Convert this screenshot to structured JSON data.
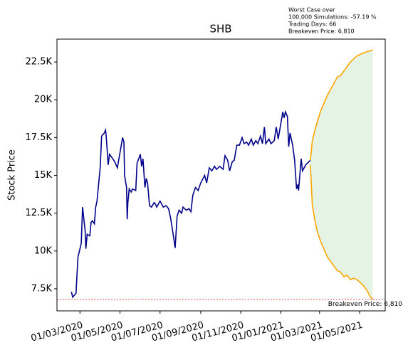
{
  "chart_data": {
    "type": "line",
    "title": "SHB",
    "ylabel": "Stock Price",
    "annotation": [
      "Worst Case over",
      "100,000 Simulations: -57.19 %",
      "Trading Days: 66",
      "Breakeven Price: 6,810"
    ],
    "breakeven": 6810,
    "breakeven_label": "Breakeven Price: 6,810",
    "breakeven_color": "#d62728",
    "band_color": "#2ca02c",
    "xlim": [
      "2020-01-26",
      "2021-06-09"
    ],
    "xticks": [
      {
        "value": "2020-03-01",
        "label": "01/03/2020"
      },
      {
        "value": "2020-05-01",
        "label": "01/05/2020"
      },
      {
        "value": "2020-07-01",
        "label": "01/07/2020"
      },
      {
        "value": "2020-09-01",
        "label": "01/09/2020"
      },
      {
        "value": "2020-11-01",
        "label": "01/11/2020"
      },
      {
        "value": "2021-01-01",
        "label": "01/01/2021"
      },
      {
        "value": "2021-03-01",
        "label": "01/03/2021"
      },
      {
        "value": "2021-05-01",
        "label": "01/05/2021"
      }
    ],
    "ylim": [
      6040,
      24010
    ],
    "yticks": [
      {
        "value": 7500,
        "label": "7.5K"
      },
      {
        "value": 10000,
        "label": "10K"
      },
      {
        "value": 12500,
        "label": "12.5K"
      },
      {
        "value": 15000,
        "label": "15K"
      },
      {
        "value": 17500,
        "label": "17.5K"
      },
      {
        "value": 20000,
        "label": "20K"
      },
      {
        "value": 22500,
        "label": "22.5K"
      }
    ],
    "series": [
      {
        "color": "#00008b",
        "x": [
          "2020-02-17",
          "2020-02-19",
          "2020-02-24",
          "2020-02-27",
          "2020-03-03",
          "2020-03-05",
          "2020-03-09",
          "2020-03-10",
          "2020-03-12",
          "2020-03-16",
          "2020-03-18",
          "2020-03-20",
          "2020-03-23",
          "2020-03-25",
          "2020-03-27",
          "2020-04-01",
          "2020-04-03",
          "2020-04-07",
          "2020-04-09",
          "2020-04-10",
          "2020-04-13",
          "2020-04-15",
          "2020-04-20",
          "2020-04-23",
          "2020-04-27",
          "2020-05-03",
          "2020-05-05",
          "2020-05-07",
          "2020-05-08",
          "2020-05-11",
          "2020-05-12",
          "2020-05-13",
          "2020-05-15",
          "2020-05-18",
          "2020-05-20",
          "2020-05-25",
          "2020-05-27",
          "2020-06-01",
          "2020-06-03",
          "2020-06-05",
          "2020-06-08",
          "2020-06-10",
          "2020-06-12",
          "2020-06-15",
          "2020-06-18",
          "2020-06-22",
          "2020-06-24",
          "2020-06-26",
          "2020-07-01",
          "2020-07-06",
          "2020-07-10",
          "2020-07-14",
          "2020-07-17",
          "2020-07-21",
          "2020-07-24",
          "2020-07-27",
          "2020-07-30",
          "2020-08-03",
          "2020-08-05",
          "2020-08-10",
          "2020-08-14",
          "2020-08-17",
          "2020-08-20",
          "2020-08-24",
          "2020-08-28",
          "2020-09-01",
          "2020-09-07",
          "2020-09-10",
          "2020-09-14",
          "2020-09-18",
          "2020-09-22",
          "2020-09-25",
          "2020-09-30",
          "2020-10-05",
          "2020-10-08",
          "2020-10-12",
          "2020-10-15",
          "2020-10-19",
          "2020-10-22",
          "2020-10-26",
          "2020-10-30",
          "2020-11-03",
          "2020-11-06",
          "2020-11-10",
          "2020-11-13",
          "2020-11-17",
          "2020-11-20",
          "2020-11-24",
          "2020-11-27",
          "2020-12-01",
          "2020-12-04",
          "2020-12-07",
          "2020-12-09",
          "2020-12-14",
          "2020-12-17",
          "2020-12-22",
          "2020-12-25",
          "2020-12-28",
          "2021-01-04",
          "2021-01-06",
          "2021-01-08",
          "2021-01-11",
          "2021-01-13",
          "2021-01-15",
          "2021-01-19",
          "2021-01-22",
          "2021-01-25",
          "2021-01-27",
          "2021-01-28",
          "2021-02-01",
          "2021-02-03",
          "2021-02-08",
          "2021-02-15"
        ],
        "values": [
          7300,
          6950,
          7200,
          9600,
          10500,
          12900,
          11300,
          10150,
          11100,
          11000,
          11900,
          12000,
          11800,
          12900,
          13300,
          15600,
          17600,
          17800,
          18000,
          17600,
          15700,
          16400,
          16100,
          15900,
          15500,
          17000,
          17500,
          17200,
          15000,
          14200,
          12100,
          13200,
          14100,
          13900,
          14100,
          14000,
          15800,
          16400,
          15600,
          16100,
          14200,
          14800,
          14500,
          13000,
          12900,
          13200,
          13100,
          12900,
          13300,
          12900,
          13000,
          12800,
          12200,
          11100,
          10200,
          12300,
          12700,
          12500,
          12900,
          12700,
          12800,
          12600,
          13700,
          14200,
          14000,
          14500,
          15000,
          14500,
          15500,
          15300,
          15600,
          15400,
          15600,
          15400,
          16300,
          16000,
          15300,
          15900,
          16000,
          17000,
          17000,
          17500,
          17100,
          17200,
          17000,
          17400,
          17000,
          17300,
          17100,
          17600,
          17100,
          18200,
          17100,
          17400,
          17100,
          17300,
          18200,
          17400,
          19200,
          18800,
          19200,
          18900,
          16900,
          17800,
          17000,
          16000,
          14100,
          14400,
          14000,
          16100,
          15300,
          15700,
          16000
        ]
      },
      {
        "color": "#ffa500",
        "x": [
          "2021-02-15",
          "2021-02-18",
          "2021-02-22",
          "2021-02-26",
          "2021-03-03",
          "2021-03-08",
          "2021-03-13",
          "2021-03-18",
          "2021-03-23",
          "2021-03-28",
          "2021-04-02",
          "2021-04-07",
          "2021-04-12",
          "2021-04-17",
          "2021-04-27",
          "2021-05-07",
          "2021-05-21"
        ],
        "values": [
          16000,
          17300,
          18000,
          18600,
          19300,
          19800,
          20300,
          20700,
          21100,
          21500,
          21600,
          21900,
          22200,
          22500,
          22900,
          23100,
          23300
        ]
      },
      {
        "color": "#ffa500",
        "x": [
          "2021-02-15",
          "2021-02-18",
          "2021-02-22",
          "2021-02-26",
          "2021-03-03",
          "2021-03-08",
          "2021-03-13",
          "2021-03-18",
          "2021-03-23",
          "2021-03-28",
          "2021-04-02",
          "2021-04-07",
          "2021-04-12",
          "2021-04-17",
          "2021-04-22",
          "2021-04-27",
          "2021-05-02",
          "2021-05-07",
          "2021-05-12",
          "2021-05-17",
          "2021-05-21"
        ],
        "values": [
          15700,
          13000,
          12000,
          11200,
          10600,
          10100,
          9600,
          9300,
          9000,
          8700,
          8600,
          8300,
          8400,
          8100,
          8200,
          8100,
          7900,
          7700,
          7400,
          7000,
          6800
        ]
      }
    ]
  }
}
